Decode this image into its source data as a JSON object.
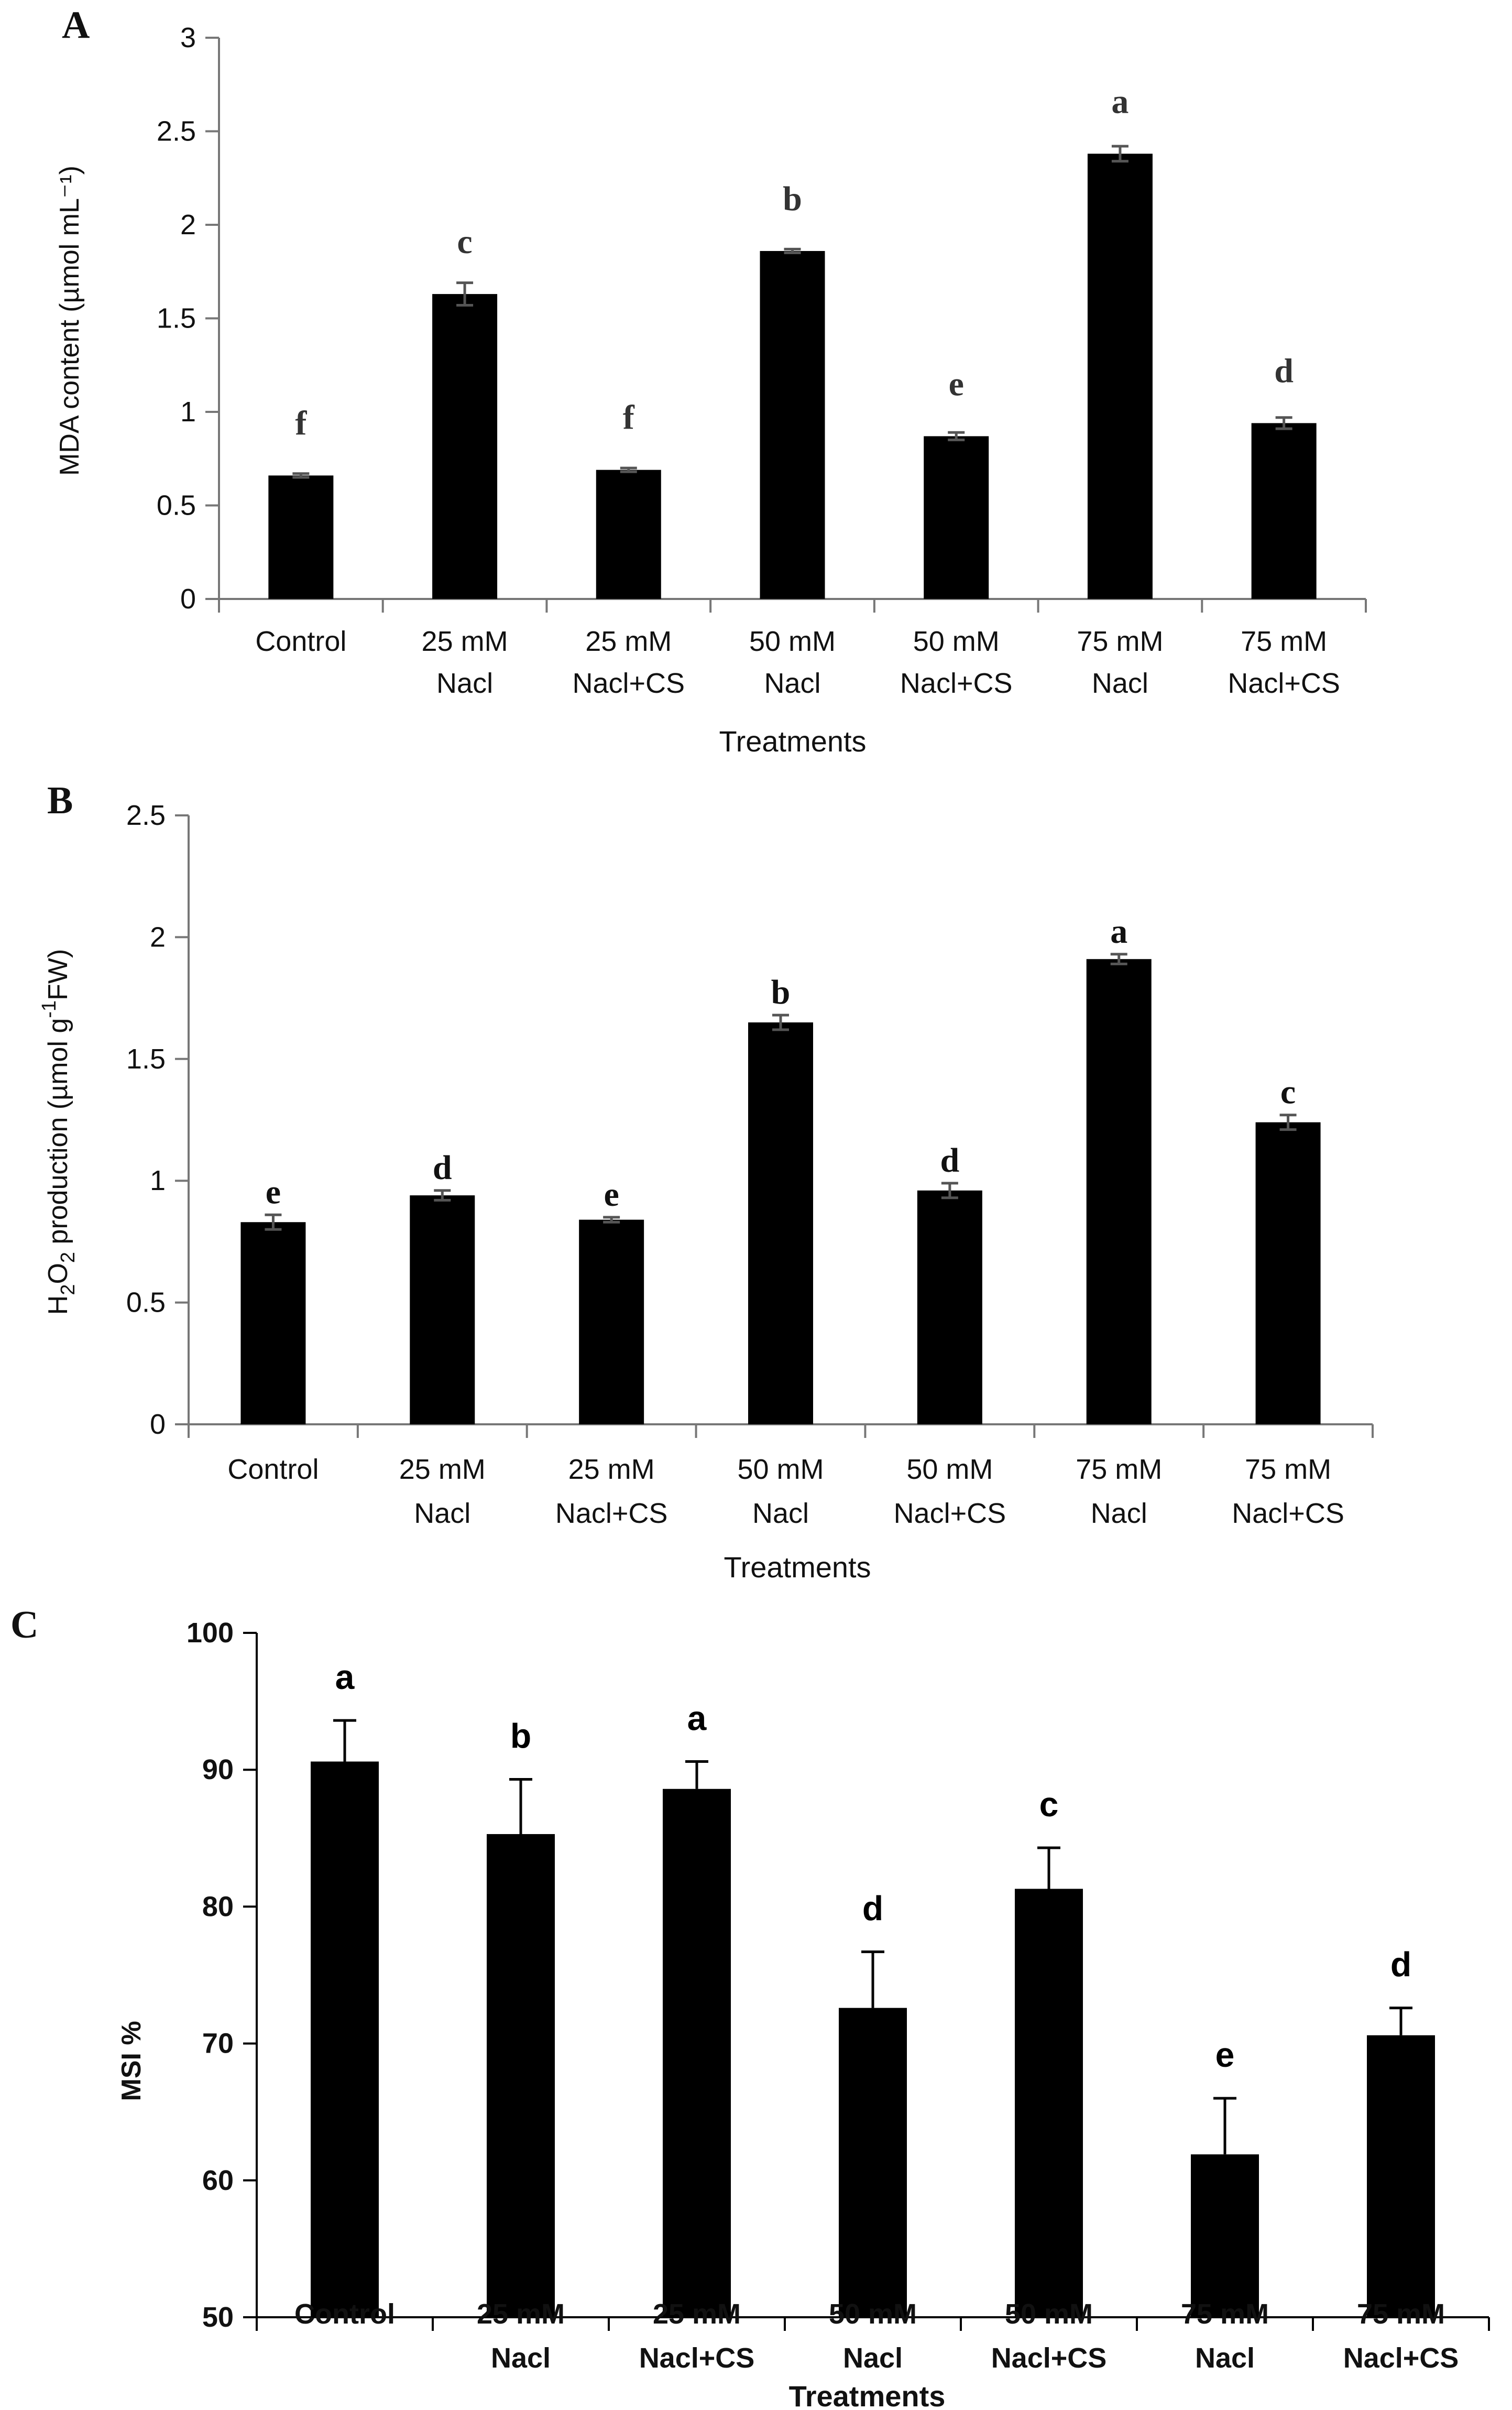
{
  "chart_data": [
    {
      "panel": "A",
      "type": "bar",
      "title": "",
      "xlabel": "Treatments",
      "ylabel": "MDA content (µmol mL⁻¹)",
      "ylim": [
        0,
        3
      ],
      "yticks": [
        0,
        0.5,
        1,
        1.5,
        2,
        2.5,
        3
      ],
      "ytick_labels": [
        "0",
        "0.5",
        "1",
        "1.5",
        "2",
        "2.5",
        "3"
      ],
      "categories": [
        [
          "Control"
        ],
        [
          "25 mM",
          "Nacl"
        ],
        [
          "25 mM",
          "Nacl+CS"
        ],
        [
          "50 mM",
          "Nacl"
        ],
        [
          "50 mM",
          "Nacl+CS"
        ],
        [
          "75 mM",
          "Nacl"
        ],
        [
          "75 mM",
          "Nacl+CS"
        ]
      ],
      "values": [
        0.66,
        1.63,
        0.69,
        1.86,
        0.87,
        2.38,
        0.94
      ],
      "errors": [
        0.01,
        0.06,
        0.01,
        0.01,
        0.02,
        0.04,
        0.03
      ],
      "significance": [
        "f",
        "c",
        "f",
        "b",
        "e",
        "a",
        "d"
      ],
      "grid": false
    },
    {
      "panel": "B",
      "type": "bar",
      "title": "",
      "xlabel": "Treatments",
      "ylabel": "H2O2 production  (µmol g-1FW)",
      "ylim": [
        0,
        2.5
      ],
      "yticks": [
        0,
        0.5,
        1,
        1.5,
        2,
        2.5
      ],
      "ytick_labels": [
        "0",
        "0.5",
        "1",
        "1.5",
        "2",
        "2.5"
      ],
      "categories": [
        [
          "Control"
        ],
        [
          "25 mM",
          "Nacl"
        ],
        [
          "25 mM",
          "Nacl+CS"
        ],
        [
          "50 mM",
          "Nacl"
        ],
        [
          "50 mM",
          "Nacl+CS"
        ],
        [
          "75 mM",
          "Nacl"
        ],
        [
          "75 mM",
          "Nacl+CS"
        ]
      ],
      "values": [
        0.83,
        0.94,
        0.84,
        1.65,
        0.96,
        1.91,
        1.24
      ],
      "errors": [
        0.03,
        0.02,
        0.01,
        0.03,
        0.03,
        0.02,
        0.03
      ],
      "significance": [
        "e",
        "d",
        "e",
        "b",
        "d",
        "a",
        "c"
      ],
      "grid": false
    },
    {
      "panel": "C",
      "type": "bar",
      "title": "",
      "xlabel": "Treatments",
      "ylabel": "MSI %",
      "ylim": [
        50,
        100
      ],
      "yticks": [
        50,
        60,
        70,
        80,
        90,
        100
      ],
      "ytick_labels": [
        "50",
        "60",
        "70",
        "80",
        "90",
        "100"
      ],
      "categories": [
        [
          "Control"
        ],
        [
          "25 mM",
          "Nacl"
        ],
        [
          "25 mM",
          "Nacl+CS"
        ],
        [
          "50 mM",
          "Nacl"
        ],
        [
          "50 mM",
          "Nacl+CS"
        ],
        [
          "75 mM",
          "Nacl"
        ],
        [
          "75 mM",
          "Nacl+CS"
        ]
      ],
      "values": [
        90.6,
        85.3,
        88.6,
        72.6,
        81.3,
        61.9,
        70.6
      ],
      "errors": [
        3.0,
        4.0,
        2.0,
        4.1,
        3.0,
        4.1,
        2.0
      ],
      "significance": [
        "a",
        "b",
        "a",
        "d",
        "c",
        "e",
        "d"
      ],
      "grid": false
    }
  ],
  "panel_labels": [
    "A",
    "B",
    "C"
  ]
}
